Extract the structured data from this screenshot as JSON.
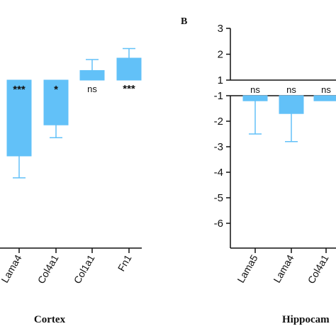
{
  "colors": {
    "bar": "#62c1f8",
    "axis": "#111111",
    "error": "#62c1f8"
  },
  "chart_data": [
    {
      "type": "bar",
      "panel_label": "",
      "region_label": "Cortex",
      "categories": [
        "Lama4",
        "Col4a1",
        "Col1a1",
        "Fn1"
      ],
      "values": [
        -3.3,
        -1.6,
        0.7,
        1.6
      ],
      "error_ends": [
        -4.5,
        -2.3,
        1.5,
        2.3
      ],
      "significance": [
        "***",
        "*",
        "ns",
        "***"
      ]
    },
    {
      "type": "bar",
      "panel_label": "B",
      "region_label": "Hippocam",
      "categories": [
        "Lama5",
        "Lama4",
        "Col4a1"
      ],
      "values": [
        -1.2,
        -1.7,
        -1.2
      ],
      "error_ends": [
        -2.5,
        -2.8,
        -1.2
      ],
      "significance": [
        "ns",
        "ns",
        "ns"
      ],
      "yticks": [
        3,
        2,
        1,
        -1,
        -2,
        -3,
        -4,
        -5,
        -6
      ],
      "ytick_labels": [
        "3",
        "2",
        "1",
        "-1",
        "-2",
        "-3",
        "-4",
        "-5",
        "-6"
      ]
    }
  ]
}
